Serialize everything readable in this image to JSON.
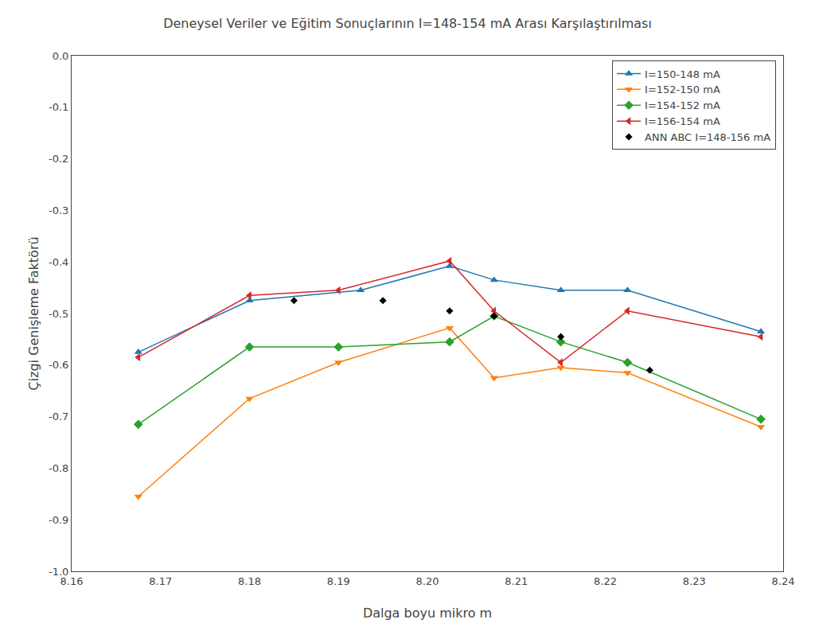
{
  "chart_data": {
    "type": "line",
    "title": "Deneysel Veriler ve Eğitim Sonuçlarının I=148-154 mA Arası Karşılaştırılması",
    "x_label": "Dalga boyu mikro m",
    "y_label": "Çizgi Genişleme Faktörü",
    "xlim": [
      8.16,
      8.24
    ],
    "ylim": [
      -1.0,
      0.0
    ],
    "xticks": [
      8.16,
      8.17,
      8.18,
      8.19,
      {
        "value": 8.2,
        "label": "8.20"
      },
      8.21,
      8.22,
      8.23,
      8.24
    ],
    "yticks": [
      {
        "value": 0.0,
        "label": "0.0"
      },
      -0.1,
      -0.2,
      -0.3,
      -0.4,
      -0.5,
      -0.6,
      -0.7,
      -0.8,
      -0.9,
      {
        "value": -1.0,
        "label": "-1.0"
      }
    ],
    "grid": false,
    "legend": "upper right",
    "series": [
      {
        "name": "I=150-148 mA",
        "marker": "triangle-up",
        "x": [
          8.1675,
          8.18,
          8.1925,
          8.2025,
          8.2075,
          8.215,
          8.2225,
          8.2375
        ],
        "values": [
          -0.575,
          -0.475,
          -0.455,
          -0.408,
          -0.435,
          -0.455,
          -0.455,
          -0.535
        ]
      },
      {
        "name": "I=152-150 mA",
        "marker": "triangle-down",
        "x": [
          8.1675,
          8.18,
          8.19,
          8.2025,
          8.2075,
          8.215,
          8.2225,
          8.2375
        ],
        "values": [
          -0.855,
          -0.665,
          -0.595,
          -0.528,
          -0.625,
          -0.605,
          -0.615,
          -0.72
        ]
      },
      {
        "name": "I=154-152 mA",
        "marker": "diamond",
        "x": [
          8.1675,
          8.18,
          8.19,
          8.2025,
          8.2075,
          8.215,
          8.2225,
          8.2375
        ],
        "values": [
          -0.715,
          -0.565,
          -0.565,
          -0.555,
          -0.505,
          -0.555,
          -0.595,
          -0.705
        ]
      },
      {
        "name": "I=156-154 mA",
        "marker": "triangle-left",
        "x": [
          8.1675,
          8.18,
          8.19,
          8.2025,
          8.2075,
          8.215,
          8.2225,
          8.2375
        ],
        "values": [
          -0.585,
          -0.465,
          -0.455,
          -0.398,
          -0.495,
          -0.595,
          -0.495,
          -0.545
        ]
      },
      {
        "name": "ANN ABC I=148-156 mA",
        "type": "scatter",
        "marker": "diamond",
        "color": "#000000",
        "x": [
          8.185,
          8.195,
          8.2025,
          8.2075,
          8.215,
          8.225
        ],
        "values": [
          -0.475,
          -0.475,
          -0.495,
          -0.505,
          -0.545,
          -0.61
        ]
      }
    ]
  }
}
